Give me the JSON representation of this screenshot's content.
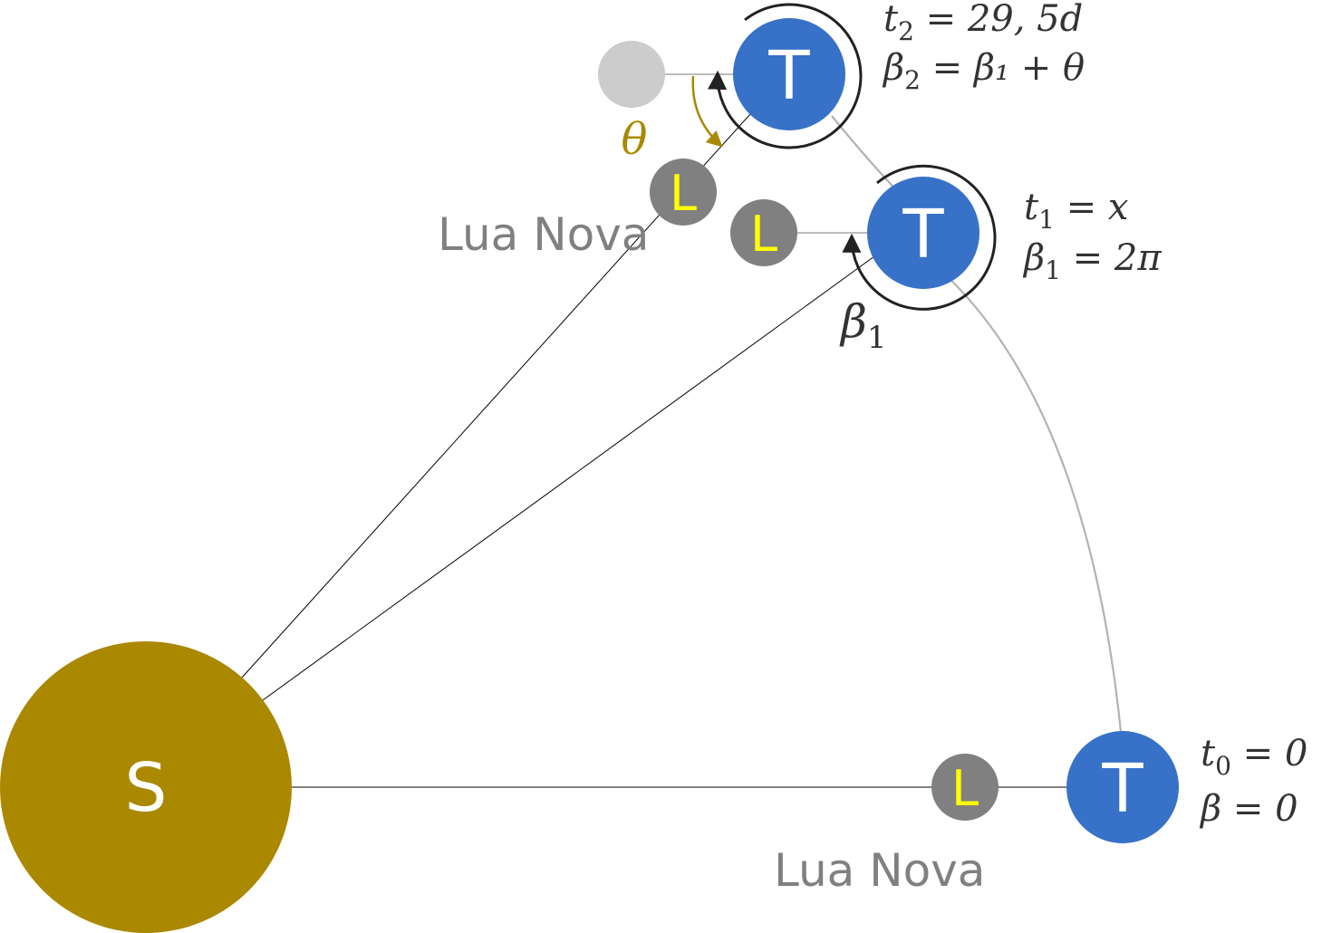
{
  "colors": {
    "sun": "#aa8800",
    "earth": "#3771c8",
    "moon": "#808080",
    "moon_letter": "#ffff00",
    "ghost_moon": "#cccccc",
    "orbit_path": "#b3b3b3",
    "line": "#000000",
    "angle_arrow": "#aa8800",
    "math_text": "#333333",
    "caption_text": "#808080"
  },
  "sun": {
    "letter": "S"
  },
  "earth": {
    "letter": "T"
  },
  "moon": {
    "letter": "L"
  },
  "captions": {
    "new_moon_top": "Lua Nova",
    "new_moon_bottom": "Lua Nova"
  },
  "angle_labels": {
    "theta": "θ",
    "beta1_symbol": "β",
    "beta1_sub": "1"
  },
  "positions": {
    "t0": {
      "line1": {
        "var": "t",
        "sub": "0",
        "rhs": " = 0"
      },
      "line2": {
        "var": "β",
        "sub": "",
        "rhs": " = 0"
      }
    },
    "t1": {
      "line1": {
        "var": "t",
        "sub": "1",
        "rhs": " = x"
      },
      "line2": {
        "var": "β",
        "sub": "1",
        "rhs": " = 2π"
      }
    },
    "t2": {
      "line1": {
        "var": "t",
        "sub": "2",
        "rhs": " = 29, 5d"
      },
      "line2": {
        "var": "β",
        "sub": "2",
        "rhs": " = β₁ + θ"
      }
    }
  }
}
